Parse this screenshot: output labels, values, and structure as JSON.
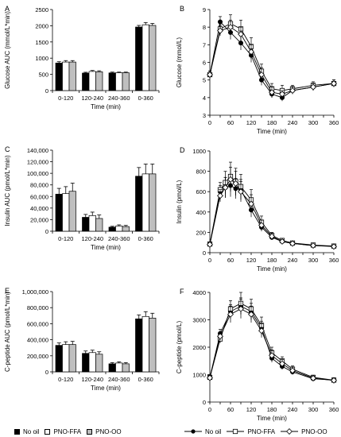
{
  "legend_bar": [
    {
      "label": "No oil",
      "color": "#000000"
    },
    {
      "label": "PNO-FFA",
      "color": "#ffffff"
    },
    {
      "label": "PNO-OO",
      "color": "#bfbfbf"
    }
  ],
  "legend_line": [
    {
      "label": "No oil",
      "marker": "circle-filled"
    },
    {
      "label": "PNO-FFA",
      "marker": "square-open"
    },
    {
      "label": "PNO-OO",
      "marker": "diamond-open"
    }
  ],
  "chart_data": [
    {
      "id": "A",
      "panel_label": "A",
      "type": "bar",
      "ylabel": "Glucose AUC (mmol/L*min)",
      "xlabel": "Time (min)",
      "categories": [
        "0-120",
        "120-240",
        "240-360",
        "0-360"
      ],
      "ylim": [
        0,
        2500
      ],
      "yticks": [
        "0",
        "500",
        "1000",
        "1500",
        "2000",
        "2500"
      ],
      "ytick_values": [
        0,
        500,
        1000,
        1500,
        2000,
        2500
      ],
      "series": [
        {
          "name": "No oil",
          "color": "#000000",
          "values": [
            850,
            540,
            545,
            1960
          ],
          "errors": [
            40,
            25,
            25,
            50
          ]
        },
        {
          "name": "PNO-FFA",
          "color": "#ffffff",
          "values": [
            880,
            590,
            550,
            2030
          ],
          "errors": [
            45,
            30,
            20,
            70
          ]
        },
        {
          "name": "PNO-OO",
          "color": "#bfbfbf",
          "values": [
            880,
            580,
            550,
            2010
          ],
          "errors": [
            45,
            30,
            20,
            60
          ]
        }
      ]
    },
    {
      "id": "B",
      "panel_label": "B",
      "type": "line",
      "ylabel": "Glucose (mmol/L)",
      "xlabel": "Time (min)",
      "x": [
        0,
        30,
        60,
        90,
        120,
        150,
        180,
        210,
        240,
        300,
        360
      ],
      "xlim": [
        0,
        360
      ],
      "xticks": [
        "0",
        "30",
        "60",
        "90",
        "120",
        "150",
        "180",
        "210",
        "240",
        "270",
        "300",
        "330",
        "360"
      ],
      "xtick_values": [
        0,
        30,
        60,
        90,
        120,
        150,
        180,
        210,
        240,
        270,
        300,
        330,
        360
      ],
      "ylim": [
        3,
        9
      ],
      "yticks": [
        "3",
        "4",
        "5",
        "6",
        "7",
        "8",
        "9"
      ],
      "ytick_values": [
        3,
        4,
        5,
        6,
        7,
        8,
        9
      ],
      "series": [
        {
          "name": "No oil",
          "marker": "circle-filled",
          "values": [
            5.3,
            8.3,
            7.7,
            7.1,
            6.4,
            5.0,
            4.2,
            4.0,
            4.4,
            4.6,
            4.8
          ],
          "errors": [
            0.2,
            0.3,
            0.4,
            0.4,
            0.4,
            0.3,
            0.2,
            0.2,
            0.2,
            0.2,
            0.2
          ]
        },
        {
          "name": "PNO-FFA",
          "marker": "square-open",
          "values": [
            5.3,
            7.9,
            8.2,
            7.9,
            6.9,
            5.5,
            4.5,
            4.4,
            4.5,
            4.7,
            4.8
          ],
          "errors": [
            0.2,
            0.3,
            0.5,
            0.5,
            0.5,
            0.4,
            0.3,
            0.3,
            0.2,
            0.2,
            0.2
          ]
        },
        {
          "name": "PNO-OO",
          "marker": "diamond-open",
          "values": [
            5.3,
            7.8,
            8.0,
            7.6,
            6.6,
            5.3,
            4.3,
            4.2,
            4.4,
            4.6,
            4.8
          ],
          "errors": [
            0.2,
            0.3,
            0.4,
            0.4,
            0.4,
            0.4,
            0.3,
            0.2,
            0.2,
            0.2,
            0.2
          ]
        }
      ]
    },
    {
      "id": "C",
      "panel_label": "C",
      "type": "bar",
      "ylabel": "Insulin AUC (pmol/L*min)",
      "xlabel": "Time (min)",
      "categories": [
        "0-120",
        "120-240",
        "240-360",
        "0-360"
      ],
      "ylim": [
        0,
        140000
      ],
      "yticks": [
        "0",
        "20,000",
        "40,000",
        "60,000",
        "80,000",
        "100,000",
        "120,000",
        "140,000"
      ],
      "ytick_values": [
        0,
        20000,
        40000,
        60000,
        80000,
        100000,
        120000,
        140000
      ],
      "series": [
        {
          "name": "No oil",
          "color": "#000000",
          "values": [
            64000,
            24000,
            7000,
            95000
          ],
          "errors": [
            10000,
            5000,
            1500,
            15000
          ]
        },
        {
          "name": "PNO-FFA",
          "color": "#ffffff",
          "values": [
            65000,
            27000,
            9000,
            99000
          ],
          "errors": [
            12000,
            6000,
            2000,
            17000
          ]
        },
        {
          "name": "PNO-OO",
          "color": "#bfbfbf",
          "values": [
            69000,
            22000,
            8000,
            99000
          ],
          "errors": [
            14000,
            6000,
            2000,
            17000
          ]
        }
      ]
    },
    {
      "id": "D",
      "panel_label": "D",
      "type": "line",
      "ylabel": "Insulin (pmol/L)",
      "xlabel": "Time (min)",
      "x": [
        0,
        30,
        45,
        60,
        75,
        90,
        120,
        150,
        180,
        210,
        240,
        300,
        360
      ],
      "xlim": [
        0,
        360
      ],
      "xticks": [
        "0",
        "30",
        "60",
        "90",
        "120",
        "150",
        "180",
        "210",
        "240",
        "270",
        "300",
        "330",
        "360"
      ],
      "xtick_values": [
        0,
        30,
        60,
        90,
        120,
        150,
        180,
        210,
        240,
        270,
        300,
        330,
        360
      ],
      "ylim": [
        0,
        1000
      ],
      "yticks": [
        "0",
        "200",
        "400",
        "600",
        "800",
        "1000"
      ],
      "ytick_values": [
        0,
        200,
        400,
        600,
        800,
        1000
      ],
      "series": [
        {
          "name": "No oil",
          "marker": "circle-filled",
          "values": [
            85,
            600,
            640,
            660,
            630,
            620,
            420,
            250,
            150,
            110,
            90,
            70,
            65
          ],
          "errors": [
            20,
            60,
            100,
            110,
            100,
            100,
            70,
            40,
            25,
            20,
            15,
            10,
            10
          ]
        },
        {
          "name": "PNO-FFA",
          "marker": "square-open",
          "values": [
            85,
            620,
            690,
            750,
            700,
            650,
            520,
            300,
            170,
            120,
            95,
            75,
            65
          ],
          "errors": [
            20,
            70,
            110,
            140,
            130,
            120,
            100,
            60,
            30,
            20,
            15,
            10,
            10
          ]
        },
        {
          "name": "PNO-OO",
          "marker": "diamond-open",
          "values": [
            80,
            560,
            640,
            720,
            680,
            600,
            480,
            270,
            160,
            110,
            90,
            70,
            60
          ],
          "errors": [
            20,
            60,
            100,
            120,
            120,
            100,
            90,
            50,
            30,
            20,
            15,
            10,
            10
          ]
        }
      ]
    },
    {
      "id": "E",
      "panel_label": "E",
      "type": "bar",
      "ylabel": "C-peptide AUC (pmol/L*min)",
      "xlabel": "Time (min)",
      "categories": [
        "0-120",
        "120-240",
        "240-360",
        "0-360"
      ],
      "ylim": [
        0,
        1000000
      ],
      "yticks": [
        "0",
        "200,000",
        "400,000",
        "600,000",
        "800,000",
        "1,000,000"
      ],
      "ytick_values": [
        0,
        200000,
        400000,
        600000,
        800000,
        1000000
      ],
      "series": [
        {
          "name": "No oil",
          "color": "#000000",
          "values": [
            330000,
            230000,
            100000,
            660000
          ],
          "errors": [
            30000,
            30000,
            15000,
            50000
          ]
        },
        {
          "name": "PNO-FFA",
          "color": "#ffffff",
          "values": [
            340000,
            240000,
            110000,
            690000
          ],
          "errors": [
            35000,
            30000,
            15000,
            60000
          ]
        },
        {
          "name": "PNO-OO",
          "color": "#bfbfbf",
          "values": [
            340000,
            220000,
            100000,
            670000
          ],
          "errors": [
            40000,
            30000,
            15000,
            60000
          ]
        }
      ]
    },
    {
      "id": "F",
      "panel_label": "F",
      "type": "line",
      "ylabel": "C-peptide (pmol/L)",
      "xlabel": "Time (min)",
      "x": [
        0,
        30,
        60,
        90,
        120,
        150,
        180,
        210,
        240,
        300,
        360
      ],
      "xlim": [
        0,
        360
      ],
      "xticks": [
        "0",
        "30",
        "60",
        "90",
        "120",
        "150",
        "180",
        "210",
        "240",
        "270",
        "300",
        "330",
        "360"
      ],
      "xtick_values": [
        0,
        30,
        60,
        90,
        120,
        150,
        180,
        210,
        240,
        270,
        300,
        330,
        360
      ],
      "ylim": [
        0,
        4000
      ],
      "yticks": [
        "0",
        "1000",
        "2000",
        "3000",
        "4000"
      ],
      "ytick_values": [
        0,
        1000,
        2000,
        3000,
        4000
      ],
      "series": [
        {
          "name": "No oil",
          "marker": "circle-filled",
          "values": [
            900,
            2500,
            3300,
            3500,
            3300,
            2700,
            1600,
            1300,
            1100,
            850,
            800
          ],
          "errors": [
            80,
            150,
            250,
            300,
            300,
            250,
            150,
            120,
            100,
            80,
            80
          ]
        },
        {
          "name": "PNO-FFA",
          "marker": "square-open",
          "values": [
            900,
            2300,
            3400,
            3600,
            3400,
            2800,
            1800,
            1500,
            1200,
            900,
            800
          ],
          "errors": [
            80,
            150,
            300,
            400,
            350,
            300,
            200,
            150,
            120,
            80,
            80
          ]
        },
        {
          "name": "PNO-OO",
          "marker": "diamond-open",
          "values": [
            880,
            2400,
            3200,
            3400,
            3200,
            2600,
            1700,
            1400,
            1150,
            870,
            790
          ],
          "errors": [
            80,
            150,
            300,
            350,
            300,
            250,
            200,
            150,
            120,
            80,
            80
          ]
        }
      ]
    }
  ]
}
